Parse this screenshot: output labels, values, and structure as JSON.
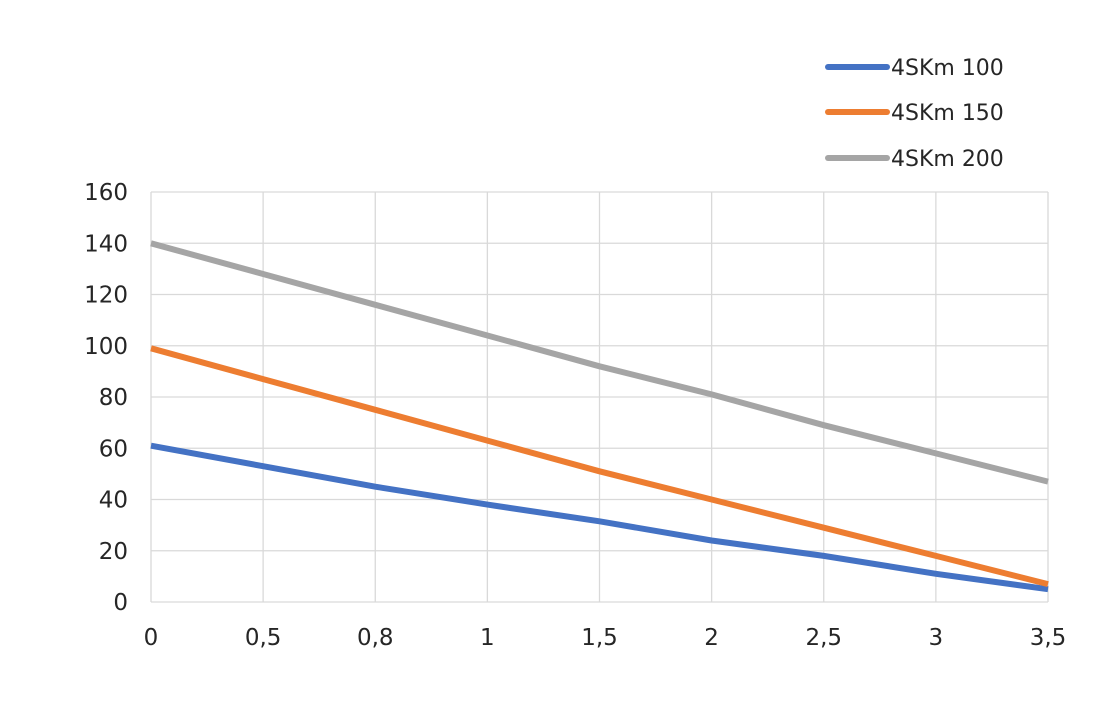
{
  "chart_data": {
    "type": "line",
    "title": "",
    "xlabel": "",
    "ylabel": "",
    "categories": [
      "0",
      "0,5",
      "0,8",
      "1",
      "1,5",
      "2",
      "2,5",
      "3",
      "3,5"
    ],
    "ylim": [
      0,
      160
    ],
    "yticks": [
      "0",
      "20",
      "40",
      "60",
      "80",
      "100",
      "120",
      "140",
      "160"
    ],
    "grid": true,
    "legend_position": "top-right",
    "series": [
      {
        "name": "4SKm 100",
        "color": "#4472c4",
        "values": [
          61,
          53,
          45,
          38,
          31.5,
          24,
          18,
          11,
          5
        ]
      },
      {
        "name": "4SKm 150",
        "color": "#ed7d31",
        "values": [
          99,
          87,
          75,
          63,
          51,
          40,
          29,
          18,
          7
        ]
      },
      {
        "name": "4SKm 200",
        "color": "#a5a5a5",
        "values": [
          140,
          128,
          116,
          104,
          92,
          81,
          69,
          58,
          47
        ]
      }
    ]
  }
}
